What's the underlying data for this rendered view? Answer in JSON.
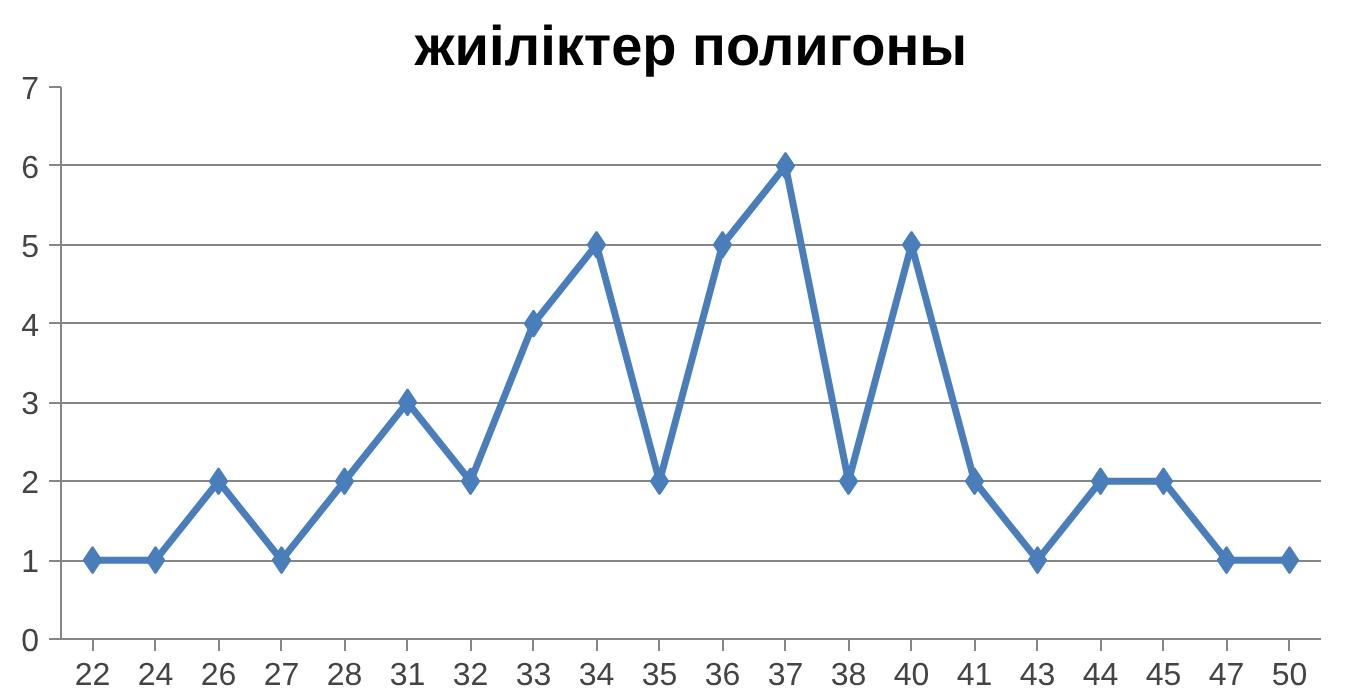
{
  "chart_data": {
    "type": "line",
    "title": "жиіліктер полигоны",
    "categories": [
      "22",
      "24",
      "26",
      "27",
      "28",
      "31",
      "32",
      "33",
      "34",
      "35",
      "36",
      "37",
      "38",
      "40",
      "41",
      "43",
      "44",
      "45",
      "47",
      "50"
    ],
    "series": [
      {
        "color": "#4a7ebb",
        "values": [
          1,
          1,
          2,
          1,
          2,
          3,
          2,
          4,
          5,
          2,
          5,
          6,
          2,
          5,
          2,
          1,
          2,
          2,
          1,
          1
        ]
      }
    ],
    "ylim": [
      0,
      7
    ],
    "yticks": [
      0,
      1,
      2,
      3,
      4,
      5,
      6,
      7
    ],
    "grid": "y",
    "marker": "diamond",
    "line_style": "solid"
  }
}
